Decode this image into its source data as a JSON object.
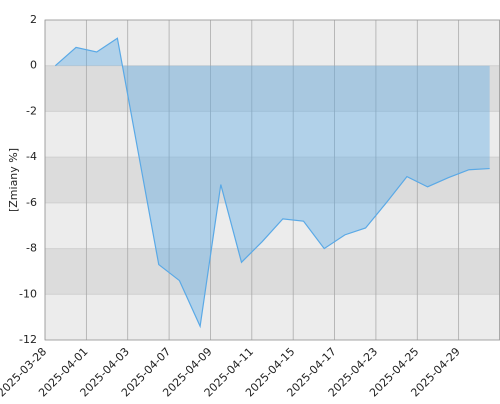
{
  "chart_data": {
    "type": "area",
    "y_label": "[Zmiany %]",
    "categories": [
      "2025-03-28",
      null,
      "2025-04-01",
      null,
      "2025-04-03",
      null,
      "2025-04-07",
      null,
      "2025-04-09",
      null,
      "2025-04-11",
      null,
      "2025-04-15",
      null,
      "2025-04-17",
      null,
      "2025-04-23",
      null,
      "2025-04-25",
      null,
      "2025-04-29",
      null
    ],
    "values": [
      0,
      0.8,
      0.6,
      1.2,
      -3.75,
      -8.7,
      -9.4,
      -11.4,
      -5.2,
      -8.6,
      -7.7,
      -6.7,
      -6.8,
      -8.0,
      -7.4,
      -7.1,
      -6.0,
      -4.85,
      -5.3,
      -4.9,
      -4.55,
      -4.5
    ],
    "color": "#5aa9e6",
    "ylim": [
      -12,
      2
    ],
    "yticks": [
      -12,
      -10,
      -8,
      -6,
      -4,
      -2,
      0,
      2
    ],
    "grid": true
  }
}
